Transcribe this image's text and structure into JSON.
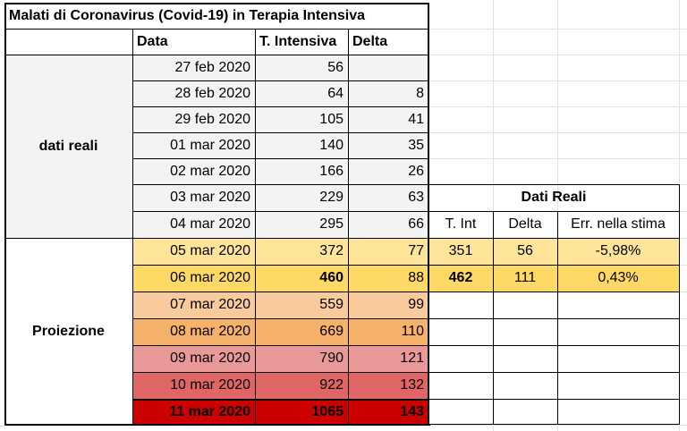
{
  "title": "Malati di Coronavirus (Covid-19) in Terapia Intensiva",
  "headers": {
    "data": "Data",
    "intensiva": "T. Intensiva",
    "delta": "Delta"
  },
  "groups": {
    "real": "dati reali",
    "projection": "Proiezione"
  },
  "rows": [
    {
      "date": "27 feb 2020",
      "value": "56",
      "delta": ""
    },
    {
      "date": "28 feb 2020",
      "value": "64",
      "delta": "8"
    },
    {
      "date": "29 feb 2020",
      "value": "105",
      "delta": "41"
    },
    {
      "date": "01 mar 2020",
      "value": "140",
      "delta": "35"
    },
    {
      "date": "02 mar 2020",
      "value": "166",
      "delta": "26"
    },
    {
      "date": "03 mar 2020",
      "value": "229",
      "delta": "63"
    },
    {
      "date": "04 mar 2020",
      "value": "295",
      "delta": "66"
    },
    {
      "date": "05 mar 2020",
      "value": "372",
      "delta": "77"
    },
    {
      "date": "06 mar 2020",
      "value": "460",
      "delta": "88"
    },
    {
      "date": "07 mar 2020",
      "value": "559",
      "delta": "99"
    },
    {
      "date": "08 mar 2020",
      "value": "669",
      "delta": "110"
    },
    {
      "date": "09 mar 2020",
      "value": "790",
      "delta": "121"
    },
    {
      "date": "10 mar 2020",
      "value": "922",
      "delta": "132"
    },
    {
      "date": "11 mar 2020",
      "value": "1065",
      "delta": "143"
    }
  ],
  "real_data": {
    "title": "Dati Reali",
    "headers": {
      "t_int": "T. Int",
      "delta": "Delta",
      "err": "Err. nella stima"
    },
    "rows": [
      {
        "t_int": "351",
        "delta": "56",
        "err": "-5,98%"
      },
      {
        "t_int": "462",
        "delta": "111",
        "err": "0,43%"
      }
    ]
  },
  "colors": {
    "gray": "#f3f3f3",
    "proj": [
      "#ffe599",
      "#ffd966",
      "#f9cb9c",
      "#f6b26b",
      "#ea9999",
      "#e06666",
      "#cc0000"
    ],
    "real_rows": [
      "#ffe599",
      "#ffd966"
    ]
  }
}
